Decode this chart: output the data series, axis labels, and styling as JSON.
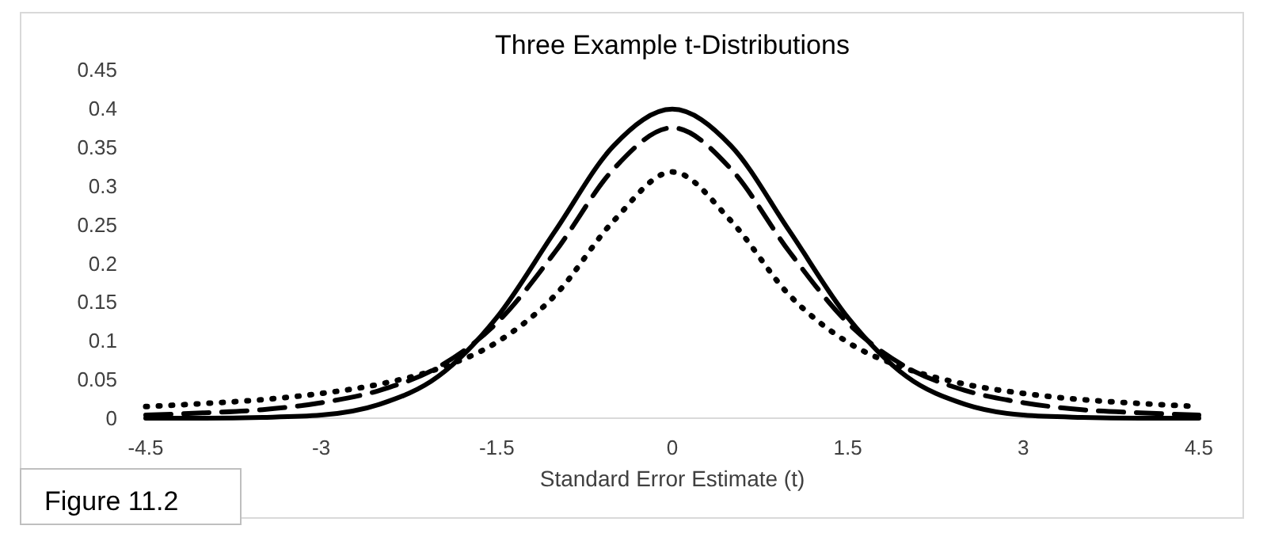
{
  "chart_data": {
    "type": "line",
    "title": "Three Example t-Distributions",
    "xlabel": "Standard Error Estimate (t)",
    "x": [
      -4.5,
      -4,
      -3.5,
      -3,
      -2.5,
      -2,
      -1.5,
      -1,
      -0.5,
      0,
      0.5,
      1,
      1.5,
      2,
      2.5,
      3,
      3.5,
      4,
      4.5
    ],
    "series": [
      {
        "color": "#000000",
        "line_style": "solid",
        "values": [
          0.0,
          0.0,
          0.001,
          0.004,
          0.018,
          0.054,
          0.13,
          0.242,
          0.352,
          0.399,
          0.352,
          0.242,
          0.13,
          0.054,
          0.018,
          0.004,
          0.001,
          0.0,
          0.0
        ]
      },
      {
        "color": "#000000",
        "line_style": "dashed",
        "values": [
          0.004,
          0.007,
          0.011,
          0.02,
          0.036,
          0.066,
          0.123,
          0.215,
          0.322,
          0.375,
          0.322,
          0.215,
          0.123,
          0.066,
          0.036,
          0.02,
          0.011,
          0.007,
          0.004
        ]
      },
      {
        "color": "#000000",
        "line_style": "dotted",
        "values": [
          0.015,
          0.019,
          0.024,
          0.032,
          0.044,
          0.064,
          0.098,
          0.159,
          0.255,
          0.318,
          0.255,
          0.159,
          0.098,
          0.064,
          0.044,
          0.032,
          0.024,
          0.019,
          0.015
        ]
      }
    ],
    "xlim": [
      -4.5,
      4.5
    ],
    "xticks": [
      -4.5,
      -3,
      -1.5,
      0,
      1.5,
      3,
      4.5
    ],
    "ylim": [
      0,
      0.45
    ],
    "yticks": [
      0,
      0.05,
      0.1,
      0.15,
      0.2,
      0.25,
      0.3,
      0.35,
      0.4,
      0.45
    ],
    "grid": false,
    "annotations": [
      "Figure 11.2"
    ]
  }
}
